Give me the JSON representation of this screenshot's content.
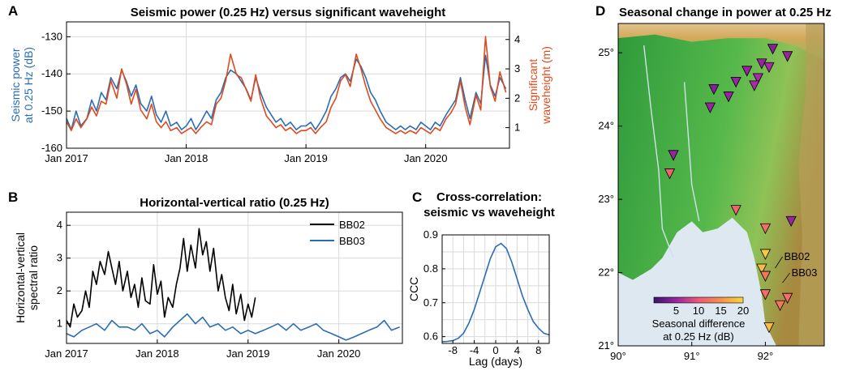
{
  "colors": {
    "seismic": "#2a6db5",
    "wave": "#e04a1c",
    "bb02": "#000000",
    "bb03": "#2a6db5",
    "ccc": "#2a6db5",
    "grid": "#d9d9d9",
    "land_low": "#3aa24a",
    "land_high": "#c99a4a",
    "sea": "#dde8f0"
  },
  "chart_data": [
    {
      "panel": "A",
      "type": "line",
      "title": "Seismic power (0.25 Hz) versus significant waveheight",
      "ylabel": "Seismic power at 0.25 Hz (dB)",
      "ylabel_lines": [
        "Seismic power",
        "at 0.25 Hz (dB)"
      ],
      "ylabel2": "Significant waveheight (m)",
      "ylabel2_lines": [
        "Significant",
        "waveheight (m)"
      ],
      "xlim": [
        2017.0,
        2020.7
      ],
      "ylim": [
        -160,
        -126
      ],
      "ylim2": [
        0.3,
        4.6
      ],
      "xticks": [
        {
          "value": 2017.0,
          "label": "Jan 2017"
        },
        {
          "value": 2018.0,
          "label": "Jan 2018"
        },
        {
          "value": 2019.0,
          "label": "Jan 2019"
        },
        {
          "value": 2020.0,
          "label": "Jan 2020"
        }
      ],
      "yticks": [
        -160,
        -150,
        -140,
        -130
      ],
      "yticks2": [
        1,
        2,
        3,
        4
      ],
      "series": [
        {
          "name": "Seismic power",
          "axis": "left",
          "x": [
            2017.0,
            2017.04,
            2017.08,
            2017.12,
            2017.17,
            2017.21,
            2017.25,
            2017.29,
            2017.33,
            2017.37,
            2017.42,
            2017.46,
            2017.5,
            2017.54,
            2017.58,
            2017.62,
            2017.67,
            2017.71,
            2017.75,
            2017.79,
            2017.83,
            2017.87,
            2017.92,
            2017.96,
            2018.0,
            2018.04,
            2018.08,
            2018.12,
            2018.17,
            2018.21,
            2018.25,
            2018.29,
            2018.33,
            2018.37,
            2018.42,
            2018.46,
            2018.5,
            2018.54,
            2018.58,
            2018.62,
            2018.67,
            2018.71,
            2018.75,
            2018.79,
            2018.83,
            2018.87,
            2018.92,
            2018.96,
            2019.0,
            2019.04,
            2019.08,
            2019.12,
            2019.17,
            2019.21,
            2019.25,
            2019.29,
            2019.33,
            2019.37,
            2019.42,
            2019.46,
            2019.5,
            2019.54,
            2019.58,
            2019.62,
            2019.67,
            2019.71,
            2019.75,
            2019.79,
            2019.83,
            2019.87,
            2019.92,
            2019.96,
            2020.0,
            2020.04,
            2020.08,
            2020.12,
            2020.17,
            2020.21,
            2020.25,
            2020.29,
            2020.33,
            2020.37,
            2020.42,
            2020.46,
            2020.5,
            2020.54,
            2020.58,
            2020.62,
            2020.67
          ],
          "y": [
            -152,
            -155,
            -150,
            -154,
            -152,
            -147,
            -150,
            -145,
            -147,
            -141,
            -144,
            -139,
            -142,
            -146,
            -143,
            -148,
            -150,
            -146,
            -151,
            -153,
            -150,
            -154,
            -153,
            -155,
            -154,
            -152,
            -155,
            -153,
            -150,
            -152,
            -147,
            -145,
            -141,
            -139,
            -140,
            -142,
            -144,
            -147,
            -141,
            -145,
            -149,
            -151,
            -153,
            -152,
            -154,
            -153,
            -155,
            -154,
            -154,
            -153,
            -155,
            -153,
            -150,
            -146,
            -144,
            -141,
            -140,
            -142,
            -136,
            -138,
            -141,
            -145,
            -147,
            -150,
            -153,
            -154,
            -155,
            -154,
            -155,
            -154,
            -155,
            -153,
            -154,
            -155,
            -153,
            -154,
            -151,
            -149,
            -147,
            -141,
            -147,
            -152,
            -145,
            -148,
            -135,
            -143,
            -146,
            -141,
            -144
          ]
        },
        {
          "name": "Significant waveheight",
          "axis": "right",
          "x": [
            2017.0,
            2017.04,
            2017.08,
            2017.12,
            2017.17,
            2017.21,
            2017.25,
            2017.29,
            2017.33,
            2017.37,
            2017.42,
            2017.46,
            2017.5,
            2017.54,
            2017.58,
            2017.62,
            2017.67,
            2017.71,
            2017.75,
            2017.79,
            2017.83,
            2017.87,
            2017.92,
            2017.96,
            2018.0,
            2018.04,
            2018.08,
            2018.12,
            2018.17,
            2018.21,
            2018.25,
            2018.29,
            2018.33,
            2018.37,
            2018.42,
            2018.46,
            2018.5,
            2018.54,
            2018.58,
            2018.62,
            2018.67,
            2018.71,
            2018.75,
            2018.79,
            2018.83,
            2018.87,
            2018.92,
            2018.96,
            2019.0,
            2019.04,
            2019.08,
            2019.12,
            2019.17,
            2019.21,
            2019.25,
            2019.29,
            2019.33,
            2019.37,
            2019.42,
            2019.46,
            2019.5,
            2019.54,
            2019.58,
            2019.62,
            2019.67,
            2019.71,
            2019.75,
            2019.79,
            2019.83,
            2019.87,
            2019.92,
            2019.96,
            2020.0,
            2020.04,
            2020.08,
            2020.12,
            2020.17,
            2020.21,
            2020.25,
            2020.29,
            2020.33,
            2020.37,
            2020.42,
            2020.46,
            2020.5,
            2020.54,
            2020.58,
            2020.62,
            2020.67
          ],
          "y": [
            1.2,
            0.9,
            1.3,
            1.0,
            1.3,
            1.7,
            1.4,
            1.9,
            1.8,
            2.6,
            2.0,
            3.0,
            2.5,
            1.8,
            2.3,
            1.6,
            1.3,
            1.8,
            1.2,
            1.0,
            1.2,
            0.9,
            1.0,
            0.8,
            0.9,
            1.0,
            0.8,
            1.0,
            1.2,
            1.1,
            1.8,
            2.0,
            2.6,
            3.5,
            2.8,
            2.7,
            2.3,
            1.9,
            2.8,
            2.0,
            1.4,
            1.2,
            1.0,
            1.1,
            0.9,
            1.0,
            0.8,
            0.9,
            0.9,
            1.0,
            0.8,
            1.0,
            1.2,
            1.7,
            2.0,
            2.6,
            2.8,
            2.4,
            3.5,
            3.0,
            2.4,
            1.9,
            1.6,
            1.3,
            1.0,
            0.9,
            0.8,
            0.9,
            0.8,
            0.9,
            0.8,
            1.0,
            0.9,
            0.8,
            1.0,
            0.9,
            1.3,
            1.5,
            1.8,
            2.6,
            1.7,
            1.1,
            2.1,
            1.6,
            4.1,
            2.4,
            1.9,
            2.9,
            2.2
          ]
        }
      ]
    },
    {
      "panel": "B",
      "type": "line",
      "title": "Horizontal-vertical ratio (0.25 Hz)",
      "ylabel": "Horizontal-vertical spectral ratio",
      "ylabel_lines": [
        "Horizontal-vertical",
        "spectral ratio"
      ],
      "xlim": [
        2017.0,
        2020.7
      ],
      "ylim": [
        0.4,
        4.4
      ],
      "xticks": [
        {
          "value": 2017.0,
          "label": "Jan 2017"
        },
        {
          "value": 2018.0,
          "label": "Jan 2018"
        },
        {
          "value": 2019.0,
          "label": "Jan 2019"
        },
        {
          "value": 2020.0,
          "label": "Jan 2020"
        }
      ],
      "yticks": [
        1,
        2,
        3,
        4
      ],
      "legend": [
        "BB02",
        "BB03"
      ],
      "legend_position": "top-right",
      "series": [
        {
          "name": "BB02",
          "x": [
            2017.0,
            2017.04,
            2017.08,
            2017.12,
            2017.17,
            2017.21,
            2017.25,
            2017.29,
            2017.33,
            2017.37,
            2017.42,
            2017.46,
            2017.5,
            2017.54,
            2017.58,
            2017.62,
            2017.67,
            2017.71,
            2017.75,
            2017.79,
            2017.83,
            2017.87,
            2017.92,
            2017.96,
            2018.0,
            2018.04,
            2018.08,
            2018.12,
            2018.17,
            2018.21,
            2018.25,
            2018.29,
            2018.33,
            2018.37,
            2018.42,
            2018.46,
            2018.5,
            2018.54,
            2018.58,
            2018.62,
            2018.67,
            2018.71,
            2018.75,
            2018.79,
            2018.83,
            2018.87,
            2018.92,
            2018.96,
            2019.0,
            2019.04,
            2019.08
          ],
          "y": [
            1.1,
            0.9,
            1.6,
            1.2,
            1.4,
            2.0,
            1.5,
            2.6,
            2.2,
            2.9,
            2.5,
            3.2,
            2.7,
            2.2,
            2.9,
            2.0,
            2.6,
            1.8,
            2.2,
            1.5,
            2.4,
            1.7,
            1.6,
            2.8,
            1.9,
            2.3,
            1.2,
            1.8,
            1.5,
            2.2,
            2.7,
            3.6,
            2.6,
            3.4,
            2.7,
            3.9,
            3.1,
            3.5,
            2.6,
            3.3,
            2.0,
            2.5,
            1.8,
            1.4,
            2.2,
            1.3,
            1.9,
            1.1,
            1.6,
            1.2,
            1.8
          ]
        },
        {
          "name": "BB03",
          "x": [
            2017.0,
            2017.08,
            2017.17,
            2017.25,
            2017.33,
            2017.42,
            2017.5,
            2017.58,
            2017.67,
            2017.75,
            2017.83,
            2017.92,
            2018.0,
            2018.08,
            2018.17,
            2018.25,
            2018.33,
            2018.42,
            2018.5,
            2018.58,
            2018.67,
            2018.75,
            2018.83,
            2018.92,
            2019.0,
            2019.08,
            2019.17,
            2019.25,
            2019.33,
            2019.42,
            2019.5,
            2019.58,
            2019.67,
            2019.75,
            2019.83,
            2019.92,
            2020.0,
            2020.08,
            2020.17,
            2020.25,
            2020.33,
            2020.42,
            2020.5,
            2020.58,
            2020.67
          ],
          "y": [
            0.7,
            0.6,
            0.8,
            0.9,
            1.0,
            0.8,
            1.1,
            0.9,
            0.9,
            0.8,
            1.0,
            0.7,
            0.8,
            0.6,
            0.9,
            1.1,
            1.3,
            1.0,
            1.2,
            0.9,
            1.0,
            0.8,
            0.9,
            0.7,
            0.8,
            0.7,
            0.8,
            0.9,
            1.0,
            0.8,
            1.0,
            0.8,
            0.9,
            1.0,
            0.8,
            0.7,
            0.6,
            0.5,
            0.6,
            0.7,
            0.8,
            0.9,
            1.1,
            0.8,
            0.9
          ]
        }
      ]
    },
    {
      "panel": "C",
      "type": "line",
      "title": "Cross-correlation: seismic vs waveheight",
      "title_lines": [
        "Cross-correlation:",
        "seismic vs waveheight"
      ],
      "xlabel": "Lag (days)",
      "ylabel": "CCC",
      "xlim": [
        -10,
        10
      ],
      "ylim": [
        0.58,
        0.9
      ],
      "xticks": [
        -8,
        -4,
        0,
        4,
        8
      ],
      "yticks": [
        0.6,
        0.7,
        0.8,
        0.9
      ],
      "series": [
        {
          "name": "CCC",
          "x": [
            -10,
            -9,
            -8,
            -7,
            -6,
            -5,
            -4,
            -3,
            -2,
            -1,
            0,
            1,
            2,
            3,
            4,
            5,
            6,
            7,
            8,
            9,
            10
          ],
          "y": [
            0.585,
            0.586,
            0.588,
            0.595,
            0.61,
            0.64,
            0.68,
            0.73,
            0.78,
            0.83,
            0.865,
            0.875,
            0.86,
            0.82,
            0.77,
            0.72,
            0.68,
            0.645,
            0.625,
            0.61,
            0.605
          ]
        }
      ]
    },
    {
      "panel": "D",
      "type": "scatter",
      "title": "Seasonal change in power at 0.25 Hz",
      "xlim": [
        90,
        92.8
      ],
      "ylim": [
        21,
        25.4
      ],
      "xticks": [
        90,
        91,
        92
      ],
      "xtick_labels": [
        "90°",
        "91°",
        "92°"
      ],
      "yticks": [
        21,
        22,
        23,
        24,
        25
      ],
      "ytick_labels": [
        "21°",
        "22°",
        "23°",
        "24°",
        "25°"
      ],
      "colorbar": {
        "label": "Seasonal difference at 0.25 Hz (dB)",
        "label_lines": [
          "Seasonal difference",
          "at 0.25 Hz (dB)"
        ],
        "range": [
          0,
          20
        ],
        "ticks": [
          5,
          10,
          15,
          20
        ]
      },
      "stations": [
        {
          "lon": 92.1,
          "lat": 25.05,
          "value": 4
        },
        {
          "lon": 92.3,
          "lat": 24.95,
          "value": 5
        },
        {
          "lon": 91.95,
          "lat": 24.85,
          "value": 5
        },
        {
          "lon": 92.05,
          "lat": 24.8,
          "value": 6
        },
        {
          "lon": 91.75,
          "lat": 24.75,
          "value": 5
        },
        {
          "lon": 91.9,
          "lat": 24.65,
          "value": 6
        },
        {
          "lon": 91.6,
          "lat": 24.6,
          "value": 5
        },
        {
          "lon": 91.85,
          "lat": 24.55,
          "value": 6
        },
        {
          "lon": 91.3,
          "lat": 24.5,
          "value": 4
        },
        {
          "lon": 91.5,
          "lat": 24.4,
          "value": 5
        },
        {
          "lon": 91.25,
          "lat": 24.25,
          "value": 5
        },
        {
          "lon": 90.75,
          "lat": 23.6,
          "value": 5
        },
        {
          "lon": 90.7,
          "lat": 23.35,
          "value": 11
        },
        {
          "lon": 91.6,
          "lat": 22.85,
          "value": 11
        },
        {
          "lon": 92.35,
          "lat": 22.7,
          "value": 5
        },
        {
          "lon": 92.0,
          "lat": 22.6,
          "value": 12
        },
        {
          "lon": 92.0,
          "lat": 22.25,
          "value": 19
        },
        {
          "lon": 91.95,
          "lat": 22.05,
          "value": 18
        },
        {
          "lon": 92.0,
          "lat": 21.95,
          "value": 13
        },
        {
          "lon": 92.0,
          "lat": 21.7,
          "value": 12
        },
        {
          "lon": 92.3,
          "lat": 21.65,
          "value": 12
        },
        {
          "lon": 92.2,
          "lat": 21.55,
          "value": 13
        },
        {
          "lon": 92.05,
          "lat": 21.25,
          "value": 18
        }
      ],
      "labels": [
        {
          "text": "BB02",
          "lon": 92.1,
          "lat": 22.15
        },
        {
          "text": "BB03",
          "lon": 92.2,
          "lat": 21.95
        }
      ]
    }
  ],
  "panel_labels": [
    "A",
    "B",
    "C",
    "D"
  ]
}
